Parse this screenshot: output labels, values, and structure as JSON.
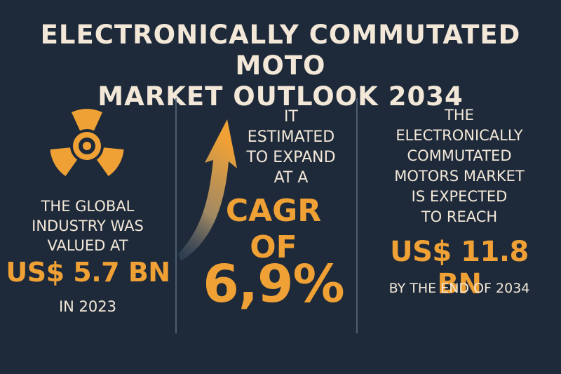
{
  "title": {
    "line1": "ELECTRONICALLY COMMUTATED MOTO",
    "line2": "MARKET OUTLOOK 2034"
  },
  "col1": {
    "icon": "fan-icon",
    "line1": "THE GLOBAL",
    "line2": "INDUSTRY WAS",
    "line3": "VALUED AT",
    "value": "US$ 5.7 BN",
    "year": "IN 2023"
  },
  "col2": {
    "icon": "arrow-up-icon",
    "line1": "IT",
    "line2": "ESTIMATED",
    "line3": "TO EXPAND",
    "line4": "AT A",
    "cagr_line1": "CAGR",
    "cagr_line2": "OF",
    "rate": "6,9%"
  },
  "col3": {
    "line1": "THE",
    "line2": "ELECTRONICALLY",
    "line3": "COMMUTATED",
    "line4": "MOTORS MARKET",
    "line5": "IS EXPECTED",
    "line6": "TO REACH",
    "value": "US$ 11.8 BN",
    "end": "BY THE END OF 2034"
  },
  "colors": {
    "background": "#1e2a3a",
    "accent": "#f0a135",
    "text": "#f3e8d8",
    "divider": "#56677a"
  }
}
